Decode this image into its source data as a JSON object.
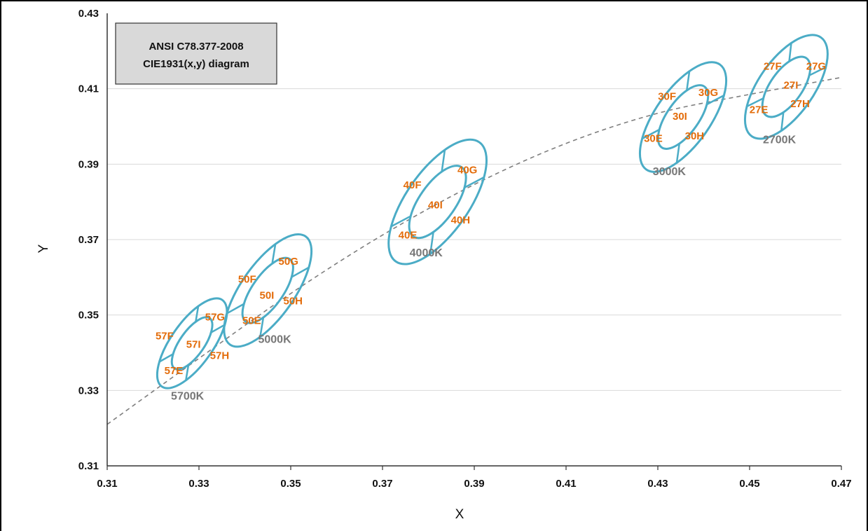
{
  "chart_data": {
    "type": "scatter",
    "title": "",
    "legend_box": {
      "line1": "ANSI C78.377-2008",
      "line2": "CIE1931(x,y)  diagram"
    },
    "xlabel": "X",
    "ylabel": "Y",
    "xlim": [
      0.31,
      0.47
    ],
    "ylim": [
      0.31,
      0.43
    ],
    "xticks": [
      "0.31",
      "0.33",
      "0.35",
      "0.37",
      "0.39",
      "0.41",
      "0.43",
      "0.45",
      "0.47"
    ],
    "yticks": [
      "0.31",
      "0.33",
      "0.35",
      "0.37",
      "0.39",
      "0.41",
      "0.43"
    ],
    "grid": "horizontal",
    "blackbody_locus": {
      "x": [
        0.31,
        0.33,
        0.35,
        0.37,
        0.39,
        0.41,
        0.43,
        0.45,
        0.47
      ],
      "y": [
        0.321,
        0.3385,
        0.3557,
        0.3712,
        0.3846,
        0.3955,
        0.4035,
        0.4085,
        0.413
      ]
    },
    "colors": {
      "ellipse": "#4bacc6",
      "bin_label": "#e36c0a",
      "cct_label": "#777777",
      "locus": "#7f7f7f",
      "grid": "#d9d9d9",
      "legend_fill": "#d9d9d9"
    },
    "quadrangles": [
      {
        "cct": "5700K",
        "center": [
          0.3285,
          0.3425
        ],
        "rx": 0.0046,
        "ry": 0.014,
        "cct_label_pos": [
          0.3275,
          0.3285
        ],
        "bins": [
          {
            "label": "57F",
            "x": 0.3225,
            "y": 0.3445
          },
          {
            "label": "57G",
            "x": 0.3335,
            "y": 0.3495
          },
          {
            "label": "57I",
            "x": 0.3288,
            "y": 0.3422
          },
          {
            "label": "57H",
            "x": 0.3345,
            "y": 0.3393
          },
          {
            "label": "57E",
            "x": 0.3245,
            "y": 0.3353
          }
        ]
      },
      {
        "cct": "5000K",
        "center": [
          0.345,
          0.3565
        ],
        "rx": 0.0058,
        "ry": 0.0175,
        "cct_label_pos": [
          0.3465,
          0.3435
        ],
        "bins": [
          {
            "label": "50F",
            "x": 0.3405,
            "y": 0.3595
          },
          {
            "label": "50G",
            "x": 0.3495,
            "y": 0.3642
          },
          {
            "label": "50I",
            "x": 0.3448,
            "y": 0.3552
          },
          {
            "label": "50H",
            "x": 0.3505,
            "y": 0.3537
          },
          {
            "label": "50E",
            "x": 0.3415,
            "y": 0.3485
          }
        ]
      },
      {
        "cct": "4000K",
        "center": [
          0.382,
          0.38
        ],
        "rx": 0.0068,
        "ry": 0.0193,
        "cct_label_pos": [
          0.3795,
          0.3665
        ],
        "bins": [
          {
            "label": "40F",
            "x": 0.3765,
            "y": 0.3845
          },
          {
            "label": "40G",
            "x": 0.3885,
            "y": 0.3885
          },
          {
            "label": "40I",
            "x": 0.3815,
            "y": 0.3792
          },
          {
            "label": "40H",
            "x": 0.387,
            "y": 0.3752
          },
          {
            "label": "40E",
            "x": 0.3755,
            "y": 0.3712
          }
        ]
      },
      {
        "cct": "3000K",
        "center": [
          0.4355,
          0.4025
        ],
        "rx": 0.006,
        "ry": 0.017,
        "cct_label_pos": [
          0.4325,
          0.388
        ],
        "bins": [
          {
            "label": "30F",
            "x": 0.432,
            "y": 0.408
          },
          {
            "label": "30G",
            "x": 0.441,
            "y": 0.409
          },
          {
            "label": "30I",
            "x": 0.4348,
            "y": 0.4027
          },
          {
            "label": "30H",
            "x": 0.438,
            "y": 0.3975
          },
          {
            "label": "30E",
            "x": 0.429,
            "y": 0.3968
          }
        ]
      },
      {
        "cct": "2700K",
        "center": [
          0.458,
          0.4105
        ],
        "rx": 0.006,
        "ry": 0.016,
        "cct_label_pos": [
          0.4565,
          0.3965
        ],
        "bins": [
          {
            "label": "27F",
            "x": 0.455,
            "y": 0.416
          },
          {
            "label": "27G",
            "x": 0.4645,
            "y": 0.416
          },
          {
            "label": "27I",
            "x": 0.459,
            "y": 0.411
          },
          {
            "label": "27H",
            "x": 0.461,
            "y": 0.406
          },
          {
            "label": "27E",
            "x": 0.452,
            "y": 0.4045
          }
        ]
      }
    ]
  }
}
